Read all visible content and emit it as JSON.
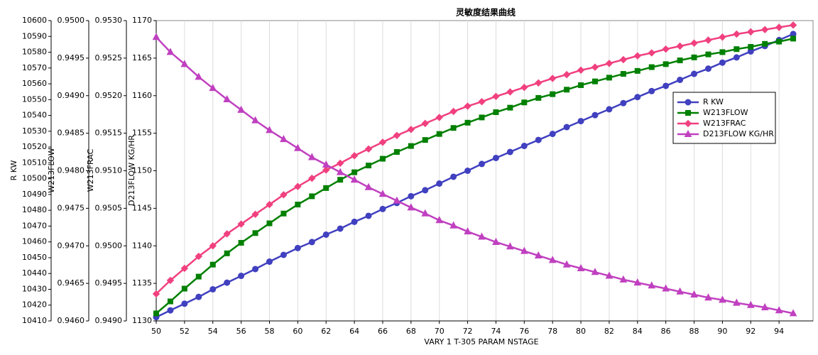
{
  "chart_data": {
    "type": "line",
    "title": "灵敏度结果曲线",
    "xlabel": "VARY   1 T-305 PARAM NSTAGE",
    "ylabel": "R KW",
    "y2label": "W213FLOW",
    "y3label": "W213FRAC",
    "y4label": "D213FLOW KG/HR",
    "x": [
      50,
      51,
      52,
      53,
      54,
      55,
      56,
      57,
      58,
      59,
      60,
      61,
      62,
      63,
      64,
      65,
      66,
      67,
      68,
      69,
      70,
      71,
      72,
      73,
      74,
      75,
      76,
      77,
      78,
      79,
      80,
      81,
      82,
      83,
      84,
      85,
      86,
      87,
      88,
      89,
      90,
      91,
      92,
      93,
      94,
      95
    ],
    "xlim": [
      50,
      96.4
    ],
    "xticks": [
      50,
      52,
      54,
      56,
      58,
      60,
      62,
      64,
      66,
      68,
      70,
      72,
      74,
      76,
      78,
      80,
      82,
      84,
      86,
      88,
      90,
      92,
      94
    ],
    "ylim": [
      10410,
      10600
    ],
    "yticks": [
      10410,
      10420,
      10430,
      10440,
      10450,
      10460,
      10470,
      10480,
      10490,
      10500,
      10510,
      10520,
      10530,
      10540,
      10550,
      10560,
      10570,
      10580,
      10590,
      10600
    ],
    "y2lim": [
      0.946,
      0.95
    ],
    "y2ticks": [
      {
        "value": 0.946,
        "label": "0.9460"
      },
      {
        "value": 0.9465,
        "label": "0.9465"
      },
      {
        "value": 0.947,
        "label": "0.9470"
      },
      {
        "value": 0.9475,
        "label": "0.9475"
      },
      {
        "value": 0.948,
        "label": "0.9480"
      },
      {
        "value": 0.9485,
        "label": "0.9485"
      },
      {
        "value": 0.949,
        "label": "0.9490"
      },
      {
        "value": 0.9495,
        "label": "0.9495"
      },
      {
        "value": 0.95,
        "label": "0.9500"
      }
    ],
    "y3lim": [
      0.949,
      0.953
    ],
    "y3ticks": [
      {
        "value": 0.949,
        "label": "0.9490"
      },
      {
        "value": 0.9495,
        "label": "0.9495"
      },
      {
        "value": 0.95,
        "label": "0.9500"
      },
      {
        "value": 0.9505,
        "label": "0.9505"
      },
      {
        "value": 0.951,
        "label": "0.9510"
      },
      {
        "value": 0.9515,
        "label": "0.9515"
      },
      {
        "value": 0.952,
        "label": "0.9520"
      },
      {
        "value": 0.9525,
        "label": "0.9525"
      },
      {
        "value": 0.953,
        "label": "0.9530"
      }
    ],
    "y4lim": [
      1130,
      1170
    ],
    "y4ticks": [
      1130,
      1135,
      1140,
      1145,
      1150,
      1155,
      1160,
      1165,
      1170
    ],
    "grid": true,
    "legend": "right",
    "series": [
      {
        "name": "R KW",
        "color": "#4040c0",
        "marker": "circle",
        "axis": "y",
        "values": [
          10412.4,
          10416.7,
          10420.9,
          10425.2,
          10430,
          10434.2,
          10438.5,
          10442.8,
          10447.5,
          10451.8,
          10456.1,
          10459.9,
          10464.6,
          10468.4,
          10472.7,
          10476.5,
          10480.8,
          10484.6,
          10488.9,
          10492.7,
          10496.9,
          10501.2,
          10505,
          10509.3,
          10513.1,
          10516.9,
          10520.7,
          10524.5,
          10528.3,
          10532.6,
          10536.4,
          10540.2,
          10543.9,
          10547.8,
          10551.6,
          10555.4,
          10558.7,
          10562.5,
          10566.3,
          10569.6,
          10573.4,
          10576.7,
          10580.5,
          10583.9,
          10587.7,
          10591.5
        ]
      },
      {
        "name": "W213FLOW",
        "color": "#008000",
        "marker": "square",
        "axis": "y2",
        "values": [
          0.9461,
          0.94626,
          0.94643,
          0.94659,
          0.94675,
          0.9469,
          0.94704,
          0.94717,
          0.9473,
          0.94743,
          0.94755,
          0.94766,
          0.94777,
          0.94788,
          0.94798,
          0.94807,
          0.94816,
          0.94825,
          0.94833,
          0.94841,
          0.94849,
          0.94857,
          0.94864,
          0.94871,
          0.94878,
          0.94884,
          0.94891,
          0.94897,
          0.94902,
          0.94908,
          0.94914,
          0.94919,
          0.94924,
          0.94929,
          0.94933,
          0.94938,
          0.94942,
          0.94947,
          0.94951,
          0.94955,
          0.94958,
          0.94962,
          0.94965,
          0.94969,
          0.94972,
          0.94976
        ]
      },
      {
        "name": "W213FRAC",
        "color": "#f0407f",
        "marker": "diamond",
        "axis": "y3",
        "values": [
          0.94936,
          0.94954,
          0.9497,
          0.94986,
          0.95,
          0.95016,
          0.95029,
          0.95042,
          0.95055,
          0.95068,
          0.95079,
          0.9509,
          0.95101,
          0.9511,
          0.9512,
          0.95129,
          0.95138,
          0.95147,
          0.95155,
          0.95163,
          0.95171,
          0.95179,
          0.95186,
          0.95192,
          0.95199,
          0.95205,
          0.95211,
          0.95217,
          0.95223,
          0.95228,
          0.95234,
          0.95238,
          0.95243,
          0.95248,
          0.95253,
          0.95257,
          0.95262,
          0.95266,
          0.9527,
          0.95274,
          0.95278,
          0.95282,
          0.95285,
          0.95288,
          0.95291,
          0.95294
        ]
      },
      {
        "name": "D213FLOW KG/HR",
        "color": "#c040c0",
        "marker": "triangle",
        "axis": "y4",
        "values": [
          1167.8,
          1165.8,
          1164.2,
          1162.5,
          1161,
          1159.5,
          1158.1,
          1156.7,
          1155.4,
          1154.2,
          1153,
          1151.8,
          1150.8,
          1149.8,
          1148.8,
          1147.8,
          1146.9,
          1146,
          1145.1,
          1144.3,
          1143.4,
          1142.7,
          1141.9,
          1141.2,
          1140.5,
          1139.9,
          1139.3,
          1138.7,
          1138.1,
          1137.5,
          1137,
          1136.5,
          1136,
          1135.5,
          1135.1,
          1134.7,
          1134.3,
          1133.9,
          1133.5,
          1133.1,
          1132.8,
          1132.4,
          1132.1,
          1131.8,
          1131.4,
          1131
        ]
      }
    ]
  }
}
